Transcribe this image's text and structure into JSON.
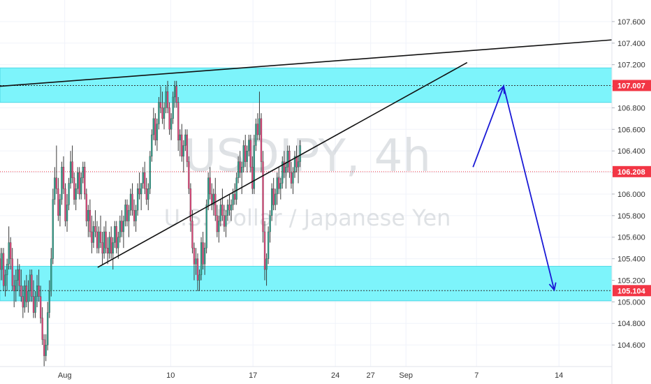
{
  "chart_data": {
    "type": "candlestick",
    "watermark": {
      "symbol": "USDJPY, 4h",
      "description": "U.S. Dollar / Japanese Yen"
    },
    "y_axis": {
      "min": 104.4,
      "max": 107.8,
      "ticks": [
        "104.600",
        "104.800",
        "105.000",
        "105.200",
        "105.400",
        "105.600",
        "105.800",
        "106.000",
        "106.200",
        "106.400",
        "106.600",
        "106.800",
        "107.000",
        "107.200",
        "107.400",
        "107.600"
      ]
    },
    "x_axis": {
      "ticks": [
        {
          "label": "Aug",
          "x": 3.0
        },
        {
          "label": "10",
          "x": 12.0
        },
        {
          "label": "17",
          "x": 19.0
        },
        {
          "label": "24",
          "x": 26.0
        },
        {
          "label": "27",
          "x": 29.0
        },
        {
          "label": "Sep",
          "x": 32.0
        },
        {
          "label": "7",
          "x": 38.0
        },
        {
          "label": "14",
          "x": 45.0
        }
      ],
      "range": [
        -2.5,
        49.5
      ]
    },
    "price_tags": [
      {
        "value": 107.007,
        "label": "107.007",
        "color": "#f23645"
      },
      {
        "value": 106.208,
        "label": "106.208",
        "color": "#f23645"
      },
      {
        "value": 105.104,
        "label": "105.104",
        "color": "#f23645"
      }
    ],
    "zones": [
      {
        "from": 106.85,
        "to": 107.17,
        "color": "#7df4fb"
      },
      {
        "from": 105.01,
        "to": 105.33,
        "color": "#7df4fb"
      }
    ],
    "trendlines": [
      {
        "x1": -2.5,
        "y1": 107.0,
        "x2": 49.5,
        "y2": 107.43
      },
      {
        "x1": 5.8,
        "y1": 105.32,
        "x2": 37.2,
        "y2": 107.22
      }
    ],
    "projection": [
      {
        "x": 37.7,
        "y": 106.25
      },
      {
        "x": 40.3,
        "y": 107.0
      },
      {
        "x": 44.6,
        "y": 105.11
      }
    ],
    "candles": [
      [
        -2.5,
        105.4,
        105.5,
        105.2,
        105.3
      ],
      [
        -2.35,
        105.3,
        105.5,
        105.2,
        105.45
      ],
      [
        -2.2,
        105.45,
        105.5,
        105.1,
        105.15
      ],
      [
        -2.05,
        105.15,
        105.3,
        105.05,
        105.25
      ],
      [
        -1.9,
        105.25,
        105.4,
        105.1,
        105.35
      ],
      [
        -1.75,
        105.35,
        105.7,
        105.3,
        105.55
      ],
      [
        -1.6,
        105.55,
        105.6,
        105.3,
        105.4
      ],
      [
        -1.45,
        105.4,
        105.5,
        105.1,
        105.15
      ],
      [
        -1.3,
        105.15,
        105.25,
        104.95,
        105.1
      ],
      [
        -1.15,
        105.1,
        105.3,
        105.0,
        105.2
      ],
      [
        -1.0,
        105.2,
        105.4,
        105.1,
        105.3
      ],
      [
        -0.85,
        105.3,
        105.35,
        105.05,
        105.15
      ],
      [
        -0.7,
        105.15,
        105.3,
        105.0,
        105.05
      ],
      [
        -0.55,
        105.05,
        105.15,
        104.85,
        104.95
      ],
      [
        -0.4,
        104.95,
        105.2,
        104.9,
        105.15
      ],
      [
        -0.25,
        105.15,
        105.25,
        104.95,
        105.0
      ],
      [
        -0.1,
        105.0,
        105.2,
        104.9,
        105.1
      ],
      [
        0.05,
        105.1,
        105.3,
        105.0,
        105.25
      ],
      [
        0.2,
        105.25,
        105.3,
        105.0,
        105.05
      ],
      [
        0.35,
        105.05,
        105.2,
        104.85,
        104.9
      ],
      [
        0.5,
        104.9,
        105.1,
        104.85,
        105.05
      ],
      [
        0.65,
        105.05,
        105.25,
        104.95,
        105.15
      ],
      [
        0.8,
        105.15,
        105.3,
        105.0,
        105.05
      ],
      [
        0.95,
        105.05,
        105.15,
        104.8,
        104.85
      ],
      [
        1.1,
        104.85,
        104.95,
        104.6,
        104.65
      ],
      [
        1.25,
        104.65,
        104.7,
        104.4,
        104.5
      ],
      [
        1.4,
        104.5,
        104.7,
        104.45,
        104.6
      ],
      [
        1.55,
        104.6,
        105.0,
        104.55,
        104.9
      ],
      [
        1.7,
        104.9,
        105.2,
        104.85,
        105.1
      ],
      [
        1.85,
        105.1,
        105.5,
        105.05,
        105.4
      ],
      [
        2.0,
        105.4,
        106.05,
        105.35,
        105.95
      ],
      [
        2.15,
        105.95,
        106.25,
        105.9,
        106.15
      ],
      [
        2.3,
        106.15,
        106.45,
        106.0,
        106.05
      ],
      [
        2.45,
        106.05,
        106.15,
        105.75,
        105.8
      ],
      [
        2.6,
        105.8,
        106.0,
        105.7,
        105.95
      ],
      [
        2.75,
        105.95,
        106.3,
        105.9,
        106.25
      ],
      [
        2.9,
        106.25,
        106.35,
        106.0,
        106.05
      ],
      [
        3.05,
        106.05,
        106.1,
        105.7,
        105.75
      ],
      [
        3.2,
        105.75,
        106.0,
        105.65,
        105.9
      ],
      [
        3.35,
        105.9,
        106.15,
        105.85,
        106.1
      ],
      [
        3.5,
        106.1,
        106.4,
        106.05,
        106.3
      ],
      [
        3.65,
        106.3,
        106.45,
        106.1,
        106.15
      ],
      [
        3.8,
        106.15,
        106.2,
        105.9,
        105.95
      ],
      [
        3.95,
        105.95,
        106.1,
        105.85,
        106.05
      ],
      [
        4.1,
        106.05,
        106.25,
        106.0,
        106.2
      ],
      [
        4.25,
        106.2,
        106.25,
        105.95,
        106.0
      ],
      [
        4.4,
        106.0,
        106.2,
        105.95,
        106.15
      ],
      [
        4.55,
        106.15,
        106.3,
        106.1,
        106.25
      ],
      [
        4.7,
        106.25,
        106.3,
        105.95,
        106.0
      ],
      [
        4.85,
        106.0,
        106.05,
        105.7,
        105.75
      ],
      [
        5.0,
        105.75,
        105.9,
        105.6,
        105.85
      ],
      [
        5.15,
        105.85,
        105.95,
        105.6,
        105.65
      ],
      [
        5.3,
        105.65,
        105.8,
        105.45,
        105.55
      ],
      [
        5.45,
        105.55,
        105.75,
        105.5,
        105.7
      ],
      [
        5.6,
        105.7,
        105.85,
        105.6,
        105.65
      ],
      [
        5.75,
        105.65,
        105.75,
        105.45,
        105.5
      ],
      [
        5.9,
        105.5,
        105.7,
        105.45,
        105.65
      ],
      [
        6.05,
        105.65,
        105.8,
        105.5,
        105.55
      ],
      [
        6.2,
        105.55,
        105.65,
        105.35,
        105.45
      ],
      [
        6.35,
        105.45,
        105.7,
        105.4,
        105.65
      ],
      [
        6.5,
        105.65,
        105.75,
        105.45,
        105.5
      ],
      [
        6.65,
        105.5,
        105.6,
        105.35,
        105.45
      ],
      [
        6.8,
        105.45,
        105.65,
        105.4,
        105.6
      ],
      [
        6.95,
        105.6,
        105.7,
        105.4,
        105.45
      ],
      [
        7.1,
        105.45,
        105.6,
        105.3,
        105.55
      ],
      [
        7.25,
        105.55,
        105.75,
        105.5,
        105.7
      ],
      [
        7.4,
        105.7,
        105.75,
        105.45,
        105.5
      ],
      [
        7.55,
        105.5,
        105.65,
        105.4,
        105.6
      ],
      [
        7.7,
        105.6,
        105.8,
        105.55,
        105.75
      ],
      [
        7.85,
        105.75,
        105.85,
        105.6,
        105.65
      ],
      [
        8.0,
        105.65,
        105.8,
        105.5,
        105.75
      ],
      [
        8.15,
        105.75,
        105.95,
        105.7,
        105.9
      ],
      [
        8.3,
        105.9,
        105.95,
        105.7,
        105.75
      ],
      [
        8.45,
        105.75,
        105.9,
        105.6,
        105.85
      ],
      [
        8.6,
        105.85,
        106.05,
        105.8,
        106.0
      ],
      [
        8.75,
        106.0,
        106.1,
        105.8,
        105.85
      ],
      [
        8.9,
        105.85,
        105.95,
        105.7,
        105.75
      ],
      [
        9.05,
        105.75,
        105.9,
        105.65,
        105.85
      ],
      [
        9.2,
        105.85,
        106.1,
        105.8,
        106.05
      ],
      [
        9.35,
        106.05,
        106.2,
        105.95,
        106.0
      ],
      [
        9.5,
        106.0,
        106.1,
        105.85,
        106.1
      ],
      [
        9.65,
        106.1,
        106.25,
        106.05,
        106.2
      ],
      [
        9.8,
        106.2,
        106.3,
        106.0,
        106.05
      ],
      [
        9.95,
        106.05,
        106.15,
        105.9,
        105.95
      ],
      [
        10.1,
        105.95,
        106.1,
        105.85,
        106.05
      ],
      [
        10.25,
        106.05,
        106.4,
        106.0,
        106.35
      ],
      [
        10.4,
        106.35,
        106.6,
        106.3,
        106.55
      ],
      [
        10.55,
        106.55,
        106.8,
        106.5,
        106.7
      ],
      [
        10.7,
        106.7,
        106.75,
        106.45,
        106.5
      ],
      [
        10.85,
        106.5,
        106.7,
        106.4,
        106.65
      ],
      [
        11.0,
        106.65,
        106.9,
        106.6,
        106.85
      ],
      [
        11.15,
        106.85,
        107.0,
        106.75,
        106.8
      ],
      [
        11.3,
        106.8,
        106.95,
        106.65,
        106.7
      ],
      [
        11.45,
        106.7,
        106.85,
        106.6,
        106.8
      ],
      [
        11.6,
        106.8,
        107.0,
        106.75,
        106.95
      ],
      [
        11.75,
        106.95,
        107.05,
        106.75,
        106.8
      ],
      [
        11.9,
        106.8,
        106.85,
        106.55,
        106.6
      ],
      [
        12.05,
        106.6,
        106.75,
        106.5,
        106.7
      ],
      [
        12.2,
        106.7,
        106.95,
        106.65,
        106.9
      ],
      [
        12.35,
        106.9,
        107.05,
        106.8,
        107.0
      ],
      [
        12.5,
        107.0,
        107.05,
        106.8,
        106.85
      ],
      [
        12.65,
        106.85,
        106.9,
        106.4,
        106.5
      ],
      [
        12.8,
        106.5,
        106.6,
        106.35,
        106.55
      ],
      [
        12.95,
        106.55,
        106.65,
        106.3,
        106.35
      ],
      [
        13.1,
        106.35,
        106.5,
        106.2,
        106.45
      ],
      [
        13.25,
        106.45,
        106.6,
        106.4,
        106.55
      ],
      [
        13.4,
        106.55,
        106.6,
        106.25,
        106.3
      ],
      [
        13.55,
        106.3,
        106.35,
        106.0,
        106.05
      ],
      [
        13.7,
        106.05,
        106.1,
        105.65,
        105.75
      ],
      [
        13.85,
        105.75,
        105.85,
        105.45,
        105.5
      ],
      [
        14.0,
        105.5,
        105.55,
        105.2,
        105.35
      ],
      [
        14.15,
        105.35,
        105.5,
        105.25,
        105.4
      ],
      [
        14.3,
        105.4,
        105.45,
        105.1,
        105.2
      ],
      [
        14.45,
        105.2,
        105.3,
        105.1,
        105.25
      ],
      [
        14.6,
        105.25,
        105.6,
        105.2,
        105.55
      ],
      [
        14.75,
        105.55,
        105.65,
        105.3,
        105.35
      ],
      [
        14.9,
        105.35,
        105.55,
        105.25,
        105.5
      ],
      [
        15.05,
        105.5,
        105.95,
        105.45,
        105.9
      ],
      [
        15.2,
        105.9,
        106.2,
        105.85,
        106.15
      ],
      [
        15.35,
        106.15,
        106.25,
        105.95,
        106.0
      ],
      [
        15.5,
        106.0,
        106.1,
        105.85,
        105.9
      ],
      [
        15.65,
        105.9,
        106.05,
        105.8,
        106.0
      ],
      [
        15.8,
        106.0,
        106.15,
        105.75,
        105.8
      ],
      [
        15.95,
        105.8,
        105.9,
        105.6,
        105.65
      ],
      [
        16.1,
        105.65,
        105.8,
        105.55,
        105.75
      ],
      [
        16.25,
        105.75,
        105.95,
        105.7,
        105.9
      ],
      [
        16.4,
        105.9,
        106.05,
        105.75,
        105.8
      ],
      [
        16.55,
        105.8,
        105.9,
        105.65,
        105.7
      ],
      [
        16.7,
        105.7,
        105.85,
        105.6,
        105.8
      ],
      [
        16.85,
        105.8,
        105.95,
        105.75,
        105.9
      ],
      [
        17.0,
        105.9,
        106.0,
        105.8,
        105.85
      ],
      [
        17.15,
        105.85,
        105.95,
        105.75,
        105.9
      ],
      [
        17.3,
        105.9,
        106.05,
        105.85,
        106.0
      ],
      [
        17.45,
        106.0,
        106.1,
        105.9,
        105.95
      ],
      [
        17.6,
        105.95,
        106.2,
        105.9,
        106.15
      ],
      [
        17.75,
        106.15,
        106.35,
        106.1,
        106.3
      ],
      [
        17.9,
        106.3,
        106.4,
        106.15,
        106.2
      ],
      [
        18.05,
        106.2,
        106.3,
        106.0,
        106.25
      ],
      [
        18.2,
        106.25,
        106.5,
        106.2,
        106.45
      ],
      [
        18.35,
        106.45,
        106.55,
        106.25,
        106.3
      ],
      [
        18.5,
        106.3,
        106.45,
        106.2,
        106.4
      ],
      [
        18.65,
        106.4,
        106.55,
        106.35,
        106.5
      ],
      [
        18.8,
        106.5,
        106.55,
        106.2,
        106.25
      ],
      [
        18.95,
        106.25,
        106.35,
        106.0,
        106.05
      ],
      [
        19.1,
        106.05,
        106.55,
        106.0,
        106.45
      ],
      [
        19.25,
        106.45,
        106.7,
        106.4,
        106.65
      ],
      [
        19.4,
        106.65,
        106.75,
        106.5,
        106.55
      ],
      [
        19.55,
        106.55,
        106.95,
        106.5,
        106.7
      ],
      [
        19.7,
        106.7,
        106.75,
        106.2,
        106.3
      ],
      [
        19.85,
        106.3,
        106.4,
        105.55,
        105.65
      ],
      [
        20.0,
        105.65,
        105.75,
        105.2,
        105.3
      ],
      [
        20.15,
        105.3,
        105.45,
        105.15,
        105.4
      ],
      [
        20.3,
        105.4,
        105.7,
        105.35,
        105.65
      ],
      [
        20.45,
        105.65,
        105.85,
        105.55,
        105.8
      ],
      [
        20.6,
        105.8,
        106.1,
        105.75,
        106.05
      ],
      [
        20.75,
        106.05,
        106.15,
        105.85,
        105.9
      ],
      [
        20.9,
        105.9,
        106.05,
        105.85,
        106.0
      ],
      [
        21.05,
        106.0,
        106.2,
        105.9,
        106.15
      ],
      [
        21.2,
        106.15,
        106.25,
        106.0,
        106.05
      ],
      [
        21.35,
        106.05,
        106.15,
        105.95,
        106.1
      ],
      [
        21.5,
        106.1,
        106.35,
        106.05,
        106.3
      ],
      [
        21.65,
        106.3,
        106.4,
        106.15,
        106.2
      ],
      [
        21.8,
        106.2,
        106.3,
        106.05,
        106.25
      ],
      [
        21.95,
        106.25,
        106.45,
        106.2,
        106.4
      ],
      [
        22.1,
        106.4,
        106.45,
        106.15,
        106.2
      ],
      [
        22.25,
        106.2,
        106.3,
        106.05,
        106.1
      ],
      [
        22.4,
        106.1,
        106.25,
        106.0,
        106.2
      ],
      [
        22.55,
        106.2,
        106.4,
        106.15,
        106.35
      ],
      [
        22.7,
        106.35,
        106.45,
        106.2,
        106.25
      ],
      [
        22.85,
        106.25,
        106.35,
        106.1,
        106.3
      ],
      [
        23.0,
        106.3,
        106.5,
        106.25,
        106.45
      ]
    ]
  }
}
